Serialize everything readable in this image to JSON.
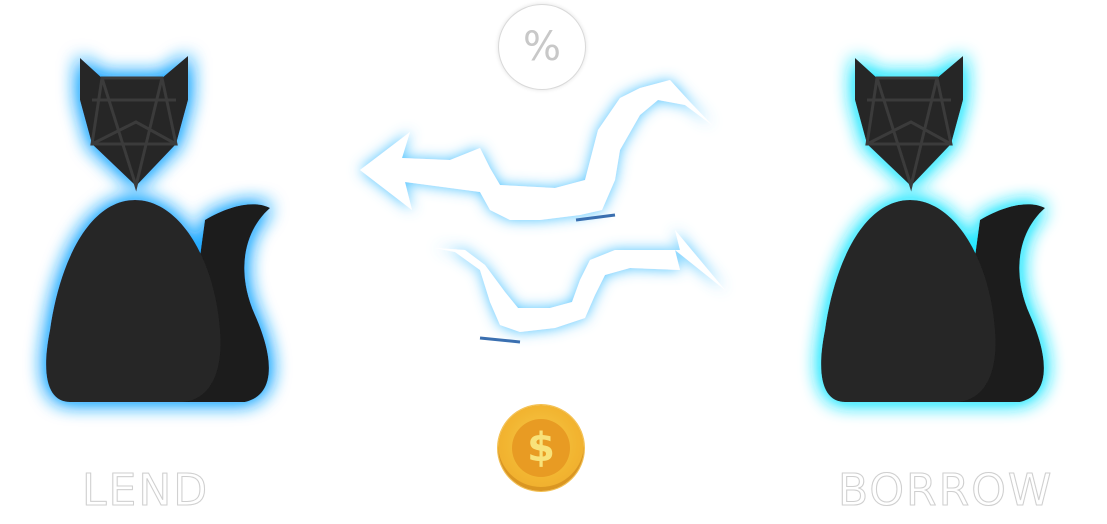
{
  "lend": {
    "label": "LEND",
    "glow_color": "#1ea7ff"
  },
  "borrow": {
    "label": "BORROW",
    "glow_color": "#1fe6ff"
  },
  "percent": {
    "symbol": "%"
  },
  "coin": {
    "symbol": "$"
  },
  "figure_color": "#262626",
  "tail_color": "#1a1a1a",
  "arrow_glow_color": "#4dc3ff"
}
